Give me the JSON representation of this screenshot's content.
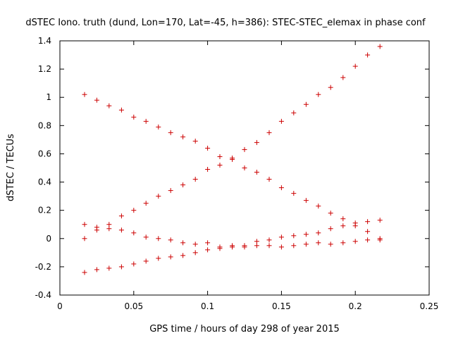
{
  "chart_data": {
    "type": "scatter",
    "title": "dSTEC Iono. truth (dund, Lon=170, Lat=-45, h=386): STEC-STEC_elemax in phase conf",
    "xlabel": "GPS time / hours of day 298 of year 2015",
    "ylabel": "dSTEC  / TECUs",
    "xlim": [
      0,
      0.25
    ],
    "ylim": [
      -0.4,
      1.4
    ],
    "xticks": [
      "0",
      "0.05",
      "0.1",
      "0.15",
      "0.2",
      "0.25"
    ],
    "yticks": [
      "-0.4",
      "-0.2",
      "0",
      "0.2",
      "0.4",
      "0.6",
      "0.8",
      "1",
      "1.2",
      "1.4"
    ],
    "grid": false,
    "marker": "+",
    "color": "#cc0000",
    "series": [
      {
        "x": [
          0.0167,
          0.025,
          0.0333,
          0.0417,
          0.05,
          0.0583,
          0.0667,
          0.075,
          0.0833,
          0.0917,
          0.1,
          0.1083,
          0.1167,
          0.125,
          0.1333,
          0.1417,
          0.15,
          0.1583,
          0.1667,
          0.175,
          0.1833,
          0.1917,
          0.2,
          0.2083,
          0.2167
        ],
        "y": [
          1.02,
          0.98,
          0.94,
          0.91,
          0.86,
          0.83,
          0.79,
          0.75,
          0.72,
          0.69,
          0.64,
          0.58,
          0.56,
          0.5,
          0.47,
          0.42,
          0.36,
          0.32,
          0.27,
          0.23,
          0.18,
          0.14,
          0.11,
          0.05,
          -0.01
        ]
      },
      {
        "x": [
          0.0167,
          0.025,
          0.0333,
          0.0417,
          0.05,
          0.0583,
          0.0667,
          0.075,
          0.0833,
          0.0917,
          0.1,
          0.1083,
          0.1167,
          0.125,
          0.1333,
          0.1417,
          0.15,
          0.1583,
          0.1667,
          0.175,
          0.1833,
          0.1917,
          0.2,
          0.2083,
          0.2167
        ],
        "y": [
          0.0,
          0.08,
          0.1,
          0.16,
          0.2,
          0.25,
          0.3,
          0.34,
          0.38,
          0.42,
          0.49,
          0.52,
          0.57,
          0.63,
          0.68,
          0.75,
          0.83,
          0.89,
          0.95,
          1.02,
          1.07,
          1.14,
          1.22,
          1.3,
          1.36
        ]
      },
      {
        "x": [
          0.0167,
          0.025,
          0.0333,
          0.0417,
          0.05,
          0.0583,
          0.0667,
          0.075,
          0.0833,
          0.0917,
          0.1,
          0.1083,
          0.1167,
          0.125,
          0.1333,
          0.1417,
          0.15,
          0.1583,
          0.1667,
          0.175,
          0.1833,
          0.1917,
          0.2,
          0.2083,
          0.2167
        ],
        "y": [
          0.1,
          0.06,
          0.07,
          0.06,
          0.04,
          0.01,
          0.0,
          -0.01,
          -0.03,
          -0.04,
          -0.03,
          -0.07,
          -0.05,
          -0.06,
          -0.05,
          -0.05,
          -0.06,
          -0.05,
          -0.04,
          -0.03,
          -0.04,
          -0.03,
          -0.02,
          -0.01,
          0.0
        ]
      },
      {
        "x": [
          0.0167,
          0.025,
          0.0333,
          0.0417,
          0.05,
          0.0583,
          0.0667,
          0.075,
          0.0833,
          0.0917,
          0.1,
          0.1083,
          0.1167,
          0.125,
          0.1333,
          0.1417,
          0.15,
          0.1583,
          0.1667,
          0.175,
          0.1833,
          0.1917,
          0.2,
          0.2083,
          0.2167
        ],
        "y": [
          -0.24,
          -0.22,
          -0.21,
          -0.2,
          -0.18,
          -0.16,
          -0.14,
          -0.13,
          -0.12,
          -0.1,
          -0.08,
          -0.06,
          -0.06,
          -0.05,
          -0.02,
          -0.01,
          0.01,
          0.02,
          0.03,
          0.04,
          0.07,
          0.09,
          0.09,
          0.12,
          0.13
        ]
      }
    ]
  }
}
